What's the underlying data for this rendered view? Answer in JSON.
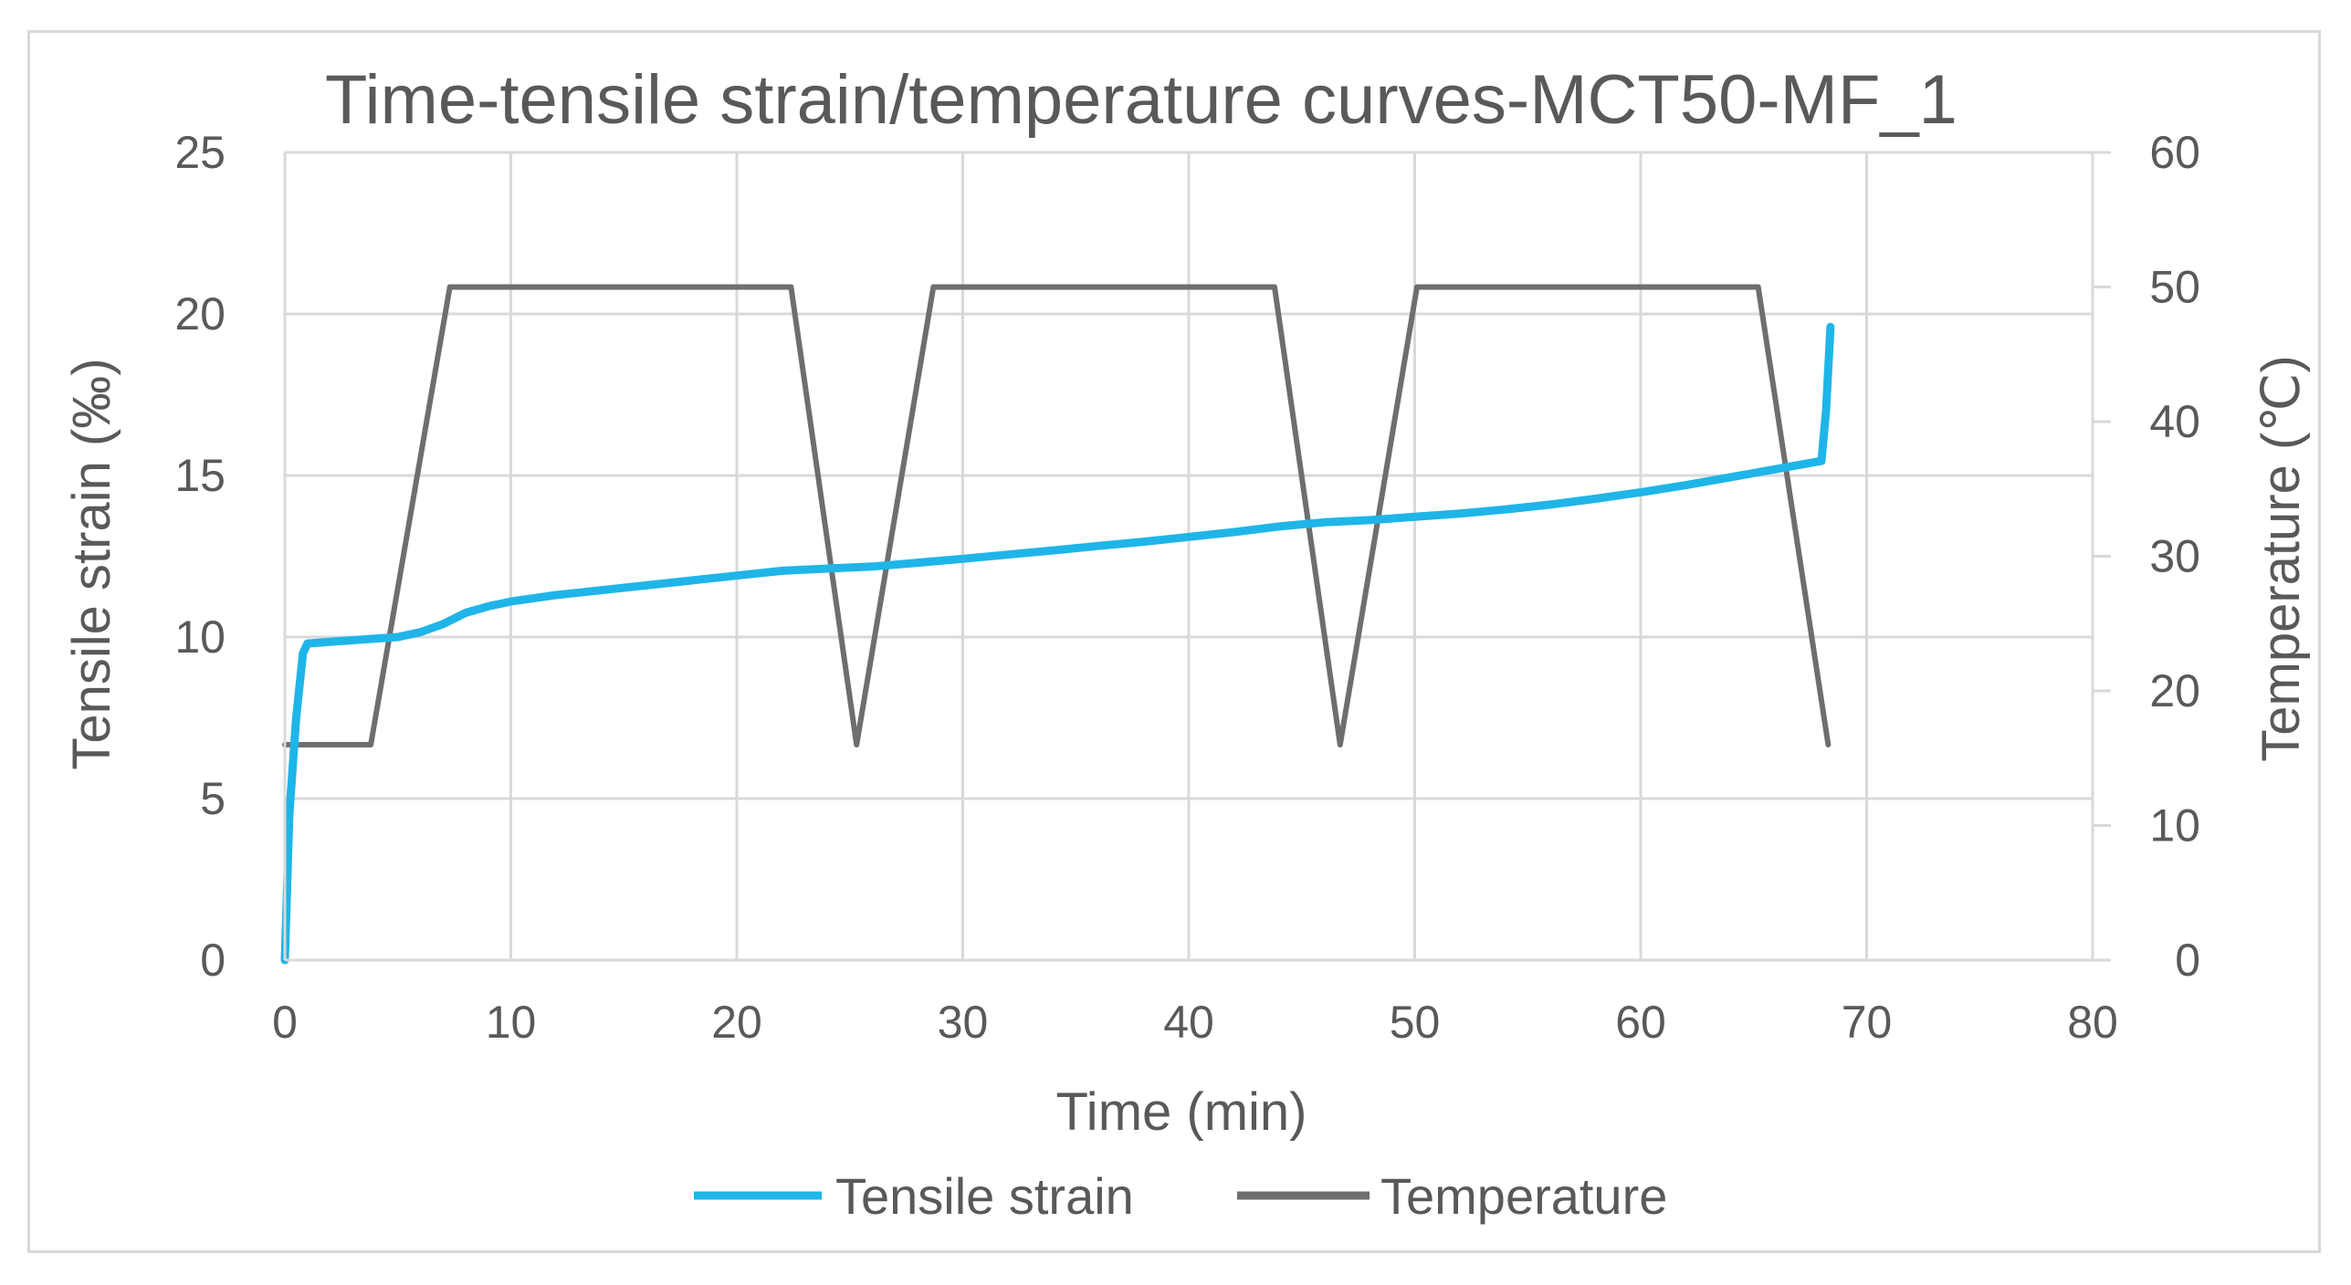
{
  "chart_data": {
    "type": "line",
    "title": "Time-tensile strain/temperature curves-MCT50-MF_1",
    "xlabel": "Time (min)",
    "ylabel": "Tensile strain (‰)",
    "y2label": "Temperature (℃)",
    "xlim": [
      0,
      80
    ],
    "ylim": [
      0,
      25
    ],
    "y2lim": [
      0,
      60
    ],
    "xticks": [
      0,
      10,
      20,
      30,
      40,
      50,
      60,
      70,
      80
    ],
    "yticks": [
      0,
      5,
      10,
      15,
      20,
      25
    ],
    "y2ticks": [
      0,
      10,
      20,
      30,
      40,
      50,
      60
    ],
    "grid": true,
    "legend_position": "bottom",
    "series": [
      {
        "name": "Tensile strain",
        "axis": "left",
        "color": "#1fb5e8",
        "x": [
          0,
          0.2,
          0.5,
          0.8,
          1,
          2,
          3,
          4,
          5,
          6,
          7,
          8,
          9,
          10,
          12,
          14,
          16,
          18,
          20,
          22,
          24,
          26,
          28,
          30,
          32,
          34,
          36,
          38,
          40,
          42,
          44,
          46,
          48,
          50,
          52,
          54,
          56,
          58,
          60,
          62,
          64,
          66,
          68,
          68.2,
          68.4
        ],
        "y": [
          0,
          4.5,
          7.5,
          9.5,
          9.8,
          9.85,
          9.9,
          9.95,
          10.0,
          10.15,
          10.4,
          10.75,
          10.95,
          11.1,
          11.3,
          11.45,
          11.6,
          11.75,
          11.9,
          12.05,
          12.12,
          12.18,
          12.3,
          12.42,
          12.55,
          12.68,
          12.82,
          12.95,
          13.1,
          13.25,
          13.42,
          13.55,
          13.62,
          13.72,
          13.82,
          13.95,
          14.1,
          14.28,
          14.48,
          14.7,
          14.95,
          15.2,
          15.45,
          17.0,
          19.6
        ]
      },
      {
        "name": "Temperature",
        "axis": "right",
        "color": "#6e6e6e",
        "x": [
          0,
          3.8,
          7.3,
          22.4,
          25.3,
          28.7,
          43.8,
          46.7,
          50.1,
          65.2,
          68.3
        ],
        "y": [
          16,
          16,
          50,
          50,
          16,
          50,
          50,
          16,
          50,
          50,
          16
        ]
      }
    ]
  }
}
